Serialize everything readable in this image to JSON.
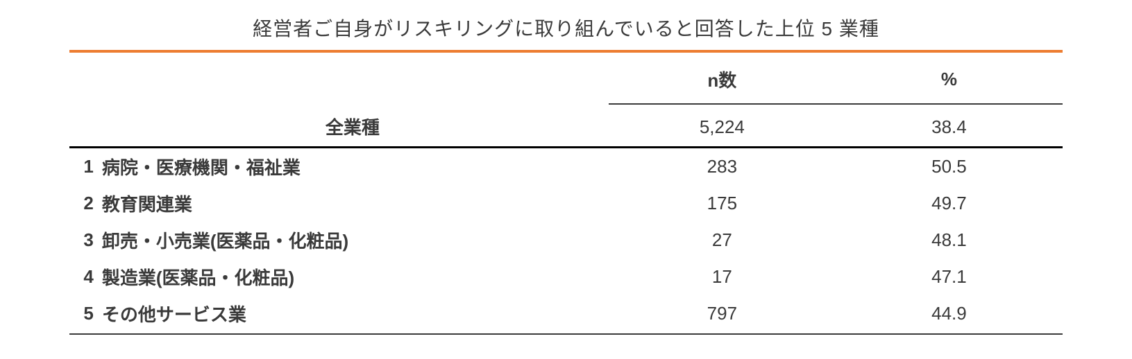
{
  "title": "経営者ご自身がリスキリングに取り組んでいると回答した上位 5 業種",
  "columns": {
    "n": "n数",
    "pct": "%"
  },
  "total": {
    "label": "全業種",
    "n": "5,224",
    "pct": "38.4"
  },
  "rows": [
    {
      "rank": "1",
      "name": "病院・医療機関・福祉業",
      "n": "283",
      "pct": "50.5"
    },
    {
      "rank": "2",
      "name": "教育関連業",
      "n": "175",
      "pct": "49.7"
    },
    {
      "rank": "3",
      "name": "卸売・小売業(医薬品・化粧品)",
      "n": "27",
      "pct": "48.1"
    },
    {
      "rank": "4",
      "name": "製造業(医薬品・化粧品)",
      "n": "17",
      "pct": "47.1"
    },
    {
      "rank": "5",
      "name": "その他サービス業",
      "n": "797",
      "pct": "44.9"
    }
  ],
  "style": {
    "accent_color": "#ed7d31",
    "text_color": "#3a3a3a",
    "divider_color": "#000000",
    "background_color": "#ffffff",
    "title_fontsize": 28,
    "body_fontsize": 26
  }
}
